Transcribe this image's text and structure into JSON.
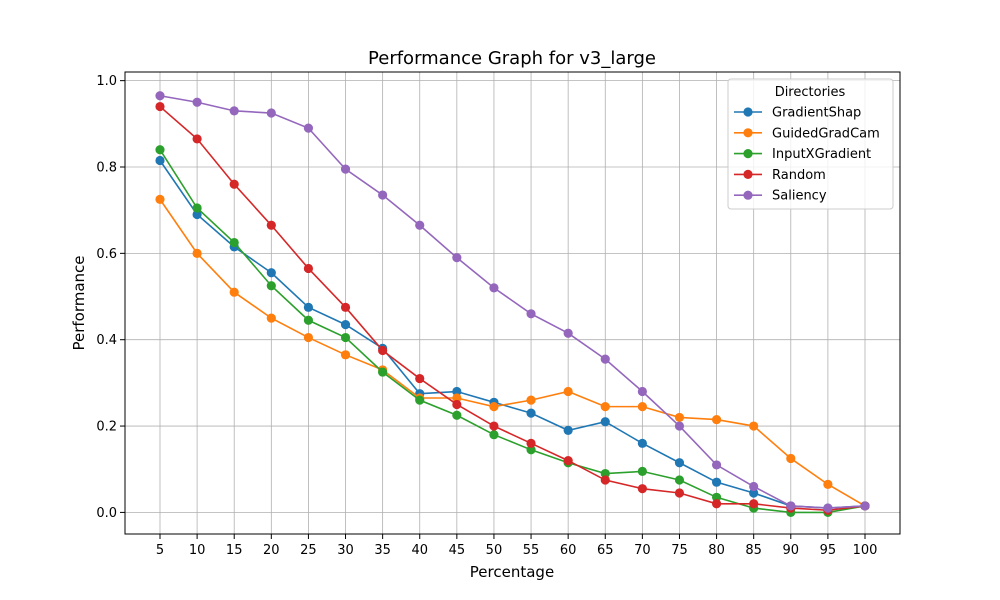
{
  "chart_data": {
    "type": "line",
    "title": "Performance Graph for v3_large",
    "xlabel": "Percentage",
    "ylabel": "Performance",
    "x": [
      5,
      10,
      15,
      20,
      25,
      30,
      35,
      40,
      45,
      50,
      55,
      60,
      65,
      70,
      75,
      80,
      85,
      90,
      95,
      100
    ],
    "xticks": [
      "5",
      "10",
      "15",
      "20",
      "25",
      "30",
      "35",
      "40",
      "45",
      "50",
      "55",
      "60",
      "65",
      "70",
      "75",
      "80",
      "85",
      "90",
      "95",
      "100"
    ],
    "ylim": [
      -0.05,
      1.02
    ],
    "yticks": [
      0.0,
      0.2,
      0.4,
      0.6,
      0.8,
      1.0
    ],
    "ytick_labels": [
      "0.0",
      "0.2",
      "0.4",
      "0.6",
      "0.8",
      "1.0"
    ],
    "grid": true,
    "legend": {
      "title": "Directories",
      "placement": "top-right"
    },
    "series": [
      {
        "name": "GradientShap",
        "color": "#1f77b4",
        "values": [
          0.815,
          0.69,
          0.615,
          0.555,
          0.475,
          0.435,
          0.38,
          0.275,
          0.28,
          0.255,
          0.23,
          0.19,
          0.21,
          0.16,
          0.115,
          0.07,
          0.045,
          0.015,
          0.01,
          0.015
        ]
      },
      {
        "name": "GuidedGradCam",
        "color": "#ff7f0e",
        "values": [
          0.725,
          0.6,
          0.51,
          0.45,
          0.405,
          0.365,
          0.33,
          0.265,
          0.265,
          0.245,
          0.26,
          0.28,
          0.245,
          0.245,
          0.22,
          0.215,
          0.2,
          0.125,
          0.065,
          0.015
        ]
      },
      {
        "name": "InputXGradient",
        "color": "#2ca02c",
        "values": [
          0.84,
          0.705,
          0.625,
          0.525,
          0.445,
          0.405,
          0.325,
          0.26,
          0.225,
          0.18,
          0.145,
          0.115,
          0.09,
          0.095,
          0.075,
          0.035,
          0.01,
          0.0,
          0.0,
          0.015
        ]
      },
      {
        "name": "Random",
        "color": "#d62728",
        "values": [
          0.94,
          0.865,
          0.76,
          0.665,
          0.565,
          0.475,
          0.375,
          0.31,
          0.25,
          0.2,
          0.16,
          0.12,
          0.075,
          0.055,
          0.045,
          0.02,
          0.02,
          0.01,
          0.005,
          0.015
        ]
      },
      {
        "name": "Saliency",
        "color": "#9467bd",
        "values": [
          0.965,
          0.95,
          0.93,
          0.925,
          0.89,
          0.795,
          0.735,
          0.665,
          0.59,
          0.52,
          0.46,
          0.415,
          0.355,
          0.28,
          0.2,
          0.11,
          0.06,
          0.015,
          0.01,
          0.015
        ]
      }
    ]
  }
}
